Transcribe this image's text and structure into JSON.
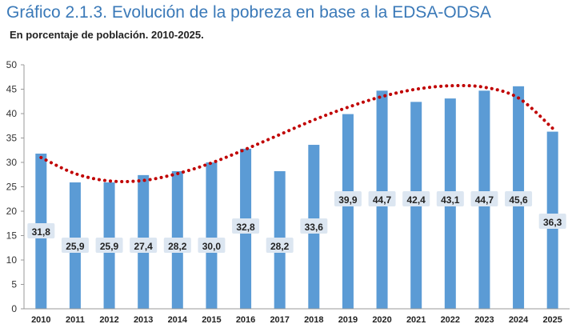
{
  "chart_data": {
    "type": "bar",
    "title": "Gráfico 2.1.3. Evolución de la pobreza en base a la EDSA-ODSA",
    "subtitle": "En porcentaje de población. 2010-2025.",
    "xlabel": "",
    "ylabel": "",
    "categories": [
      "2010",
      "2011",
      "2012",
      "2013",
      "2014",
      "2015",
      "2016",
      "2017",
      "2018",
      "2019",
      "2020",
      "2021",
      "2022",
      "2023",
      "2024",
      "2025"
    ],
    "values": [
      31.8,
      25.9,
      25.9,
      27.4,
      28.2,
      30.0,
      32.8,
      28.2,
      33.6,
      39.9,
      44.7,
      42.4,
      43.1,
      44.7,
      45.6,
      36.3
    ],
    "value_labels": [
      "31,8",
      "25,9",
      "25,9",
      "27,4",
      "28,2",
      "30,0",
      "32,8",
      "28,2",
      "33,6",
      "39,9",
      "44,7",
      "42,4",
      "43,1",
      "44,7",
      "45,6",
      "36,3"
    ],
    "ylim": [
      0,
      50
    ],
    "yticks": [
      0,
      5,
      10,
      15,
      20,
      25,
      30,
      35,
      40,
      45,
      50
    ],
    "grid": false,
    "bar_color": "#5b9bd5",
    "label_box_color": "#dce6f1",
    "trendline": {
      "type": "polynomial",
      "style": "dotted",
      "color": "#c00000",
      "points": [
        31.0,
        27.7,
        26.2,
        26.3,
        27.7,
        29.9,
        32.7,
        35.7,
        38.7,
        41.3,
        43.5,
        45.0,
        45.7,
        45.4,
        43.2,
        37.0
      ]
    }
  }
}
